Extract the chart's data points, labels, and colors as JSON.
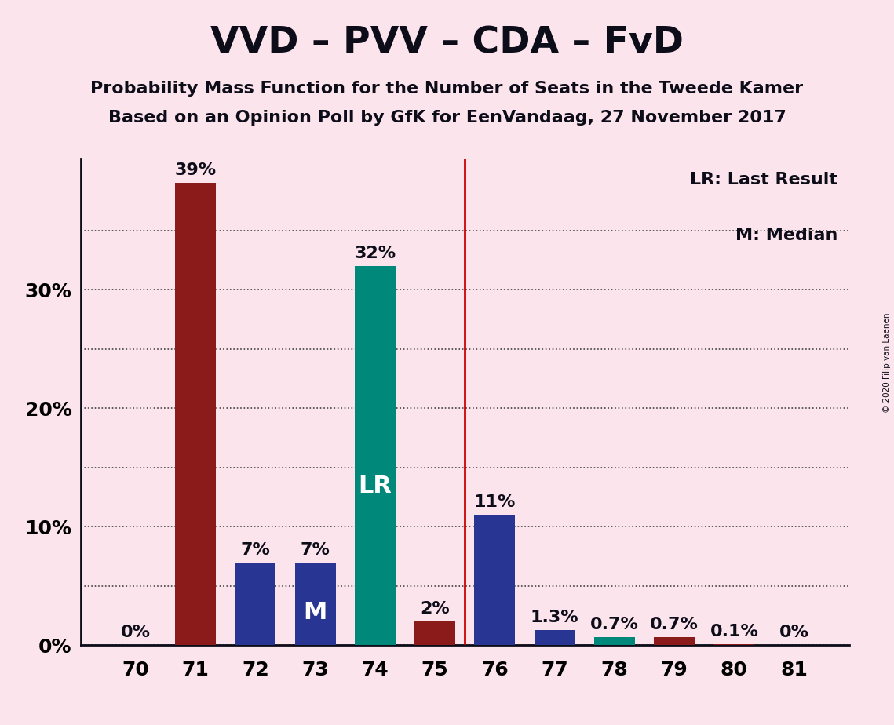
{
  "title": "VVD – PVV – CDA – FvD",
  "subtitle1": "Probability Mass Function for the Number of Seats in the Tweede Kamer",
  "subtitle2": "Based on an Opinion Poll by GfK for EenVandaag, 27 November 2017",
  "copyright": "© 2020 Filip van Laenen",
  "categories": [
    70,
    71,
    72,
    73,
    74,
    75,
    76,
    77,
    78,
    79,
    80,
    81
  ],
  "values": [
    0.0,
    39.0,
    7.0,
    7.0,
    32.0,
    2.0,
    11.0,
    1.3,
    0.7,
    0.7,
    0.1,
    0.0
  ],
  "labels": [
    "0%",
    "39%",
    "7%",
    "7%",
    "32%",
    "2%",
    "11%",
    "1.3%",
    "0.7%",
    "0.7%",
    "0.1%",
    "0%"
  ],
  "bar_colors": [
    "#8b1a1a",
    "#8b1a1a",
    "#283593",
    "#283593",
    "#00897b",
    "#8b1a1a",
    "#283593",
    "#283593",
    "#00897b",
    "#8b1a1a",
    "#8b1a1a",
    "#8b1a1a"
  ],
  "lr_bar_index": 4,
  "median_bar_index": 3,
  "lr_line_index": 5.5,
  "background_color": "#fce4ec",
  "ylim": [
    0,
    41
  ],
  "yticks": [
    0,
    10,
    20,
    30
  ],
  "ytick_labels": [
    "0%",
    "10%",
    "20%",
    "30%"
  ],
  "extra_gridline": 35,
  "legend_text1": "LR: Last Result",
  "legend_text2": "M: Median",
  "title_fontsize": 34,
  "subtitle_fontsize": 16,
  "label_fontsize": 16,
  "axis_fontsize": 18,
  "bar_label_inside_color": "#ffffff",
  "bar_label_outside_color": "#0d0d1a",
  "lr_label": "LR",
  "median_label": "M",
  "lr_label_fontsize": 22,
  "median_label_fontsize": 22,
  "vline_color": "#cc0000",
  "grid_color": "#444444",
  "spine_color": "#0d0d1a"
}
